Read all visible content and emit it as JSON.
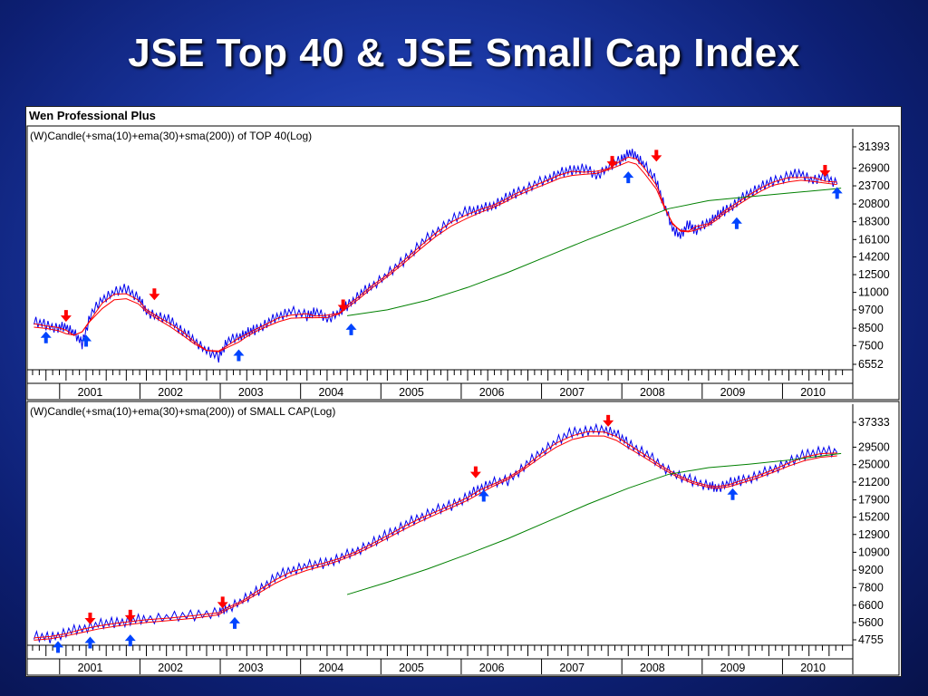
{
  "slide": {
    "title": "JSE Top 40 & JSE Small Cap Index"
  },
  "app": {
    "title": "Wen Professional Plus"
  },
  "colors": {
    "candle": "#0000ee",
    "sma10": "#ff0000",
    "ema30": "#ff0000",
    "sma200": "#008000",
    "buy_arrow": "#0044ff",
    "sell_arrow": "#ff0000"
  },
  "chart_data": [
    {
      "type": "line",
      "title": "(W)Candle(+sma(10)+ema(30)+sma(200)) of TOP 40(Log)",
      "y_scale": "log",
      "yticks": [
        31393,
        26900,
        23700,
        20800,
        18300,
        16100,
        14200,
        12500,
        11000,
        9700,
        8500,
        7500,
        6552
      ],
      "ylim": [
        6552,
        31393
      ],
      "x_labels": [
        "2001",
        "2002",
        "2003",
        "2004",
        "2005",
        "2006",
        "2007",
        "2008",
        "2009",
        "2010"
      ],
      "xlim": [
        2000.55,
        2010.75
      ],
      "series": [
        {
          "kind": "price",
          "x": [
            2000.6,
            2000.75,
            2000.9,
            2001.0,
            2001.1,
            2001.2,
            2001.3,
            2001.45,
            2001.6,
            2001.75,
            2001.9,
            2002.0,
            2002.15,
            2002.3,
            2002.45,
            2002.6,
            2002.75,
            2002.9,
            2003.0,
            2003.15,
            2003.25,
            2003.35,
            2003.5,
            2003.65,
            2003.8,
            2004.0,
            2004.1,
            2004.25,
            2004.4,
            2004.5,
            2004.65,
            2004.8,
            2005.0,
            2005.2,
            2005.4,
            2005.6,
            2005.8,
            2006.0,
            2006.15,
            2006.3,
            2006.45,
            2006.6,
            2006.8,
            2007.0,
            2007.15,
            2007.3,
            2007.45,
            2007.6,
            2007.75,
            2007.9,
            2008.0,
            2008.1,
            2008.2,
            2008.35,
            2008.45,
            2008.55,
            2008.65,
            2008.75,
            2008.85,
            2009.0,
            2009.1,
            2009.2,
            2009.35,
            2009.5,
            2009.65,
            2009.8,
            2010.0,
            2010.15,
            2010.3,
            2010.45,
            2010.6
          ],
          "values": [
            8900,
            8700,
            8500,
            8600,
            8200,
            7600,
            9300,
            10500,
            11000,
            11300,
            10600,
            9600,
            9200,
            9000,
            8300,
            7800,
            7200,
            6900,
            7700,
            8000,
            8200,
            8400,
            8800,
            9300,
            9600,
            9300,
            9600,
            9100,
            9500,
            10000,
            10800,
            11500,
            12500,
            13800,
            15500,
            17000,
            18500,
            19800,
            20000,
            20500,
            21500,
            22500,
            23700,
            25000,
            26000,
            26500,
            27000,
            25500,
            27000,
            28500,
            30000,
            29500,
            27500,
            24500,
            20500,
            17500,
            16500,
            18000,
            17200,
            18300,
            19000,
            19800,
            21000,
            22500,
            23500,
            24500,
            25500,
            26000,
            24500,
            25500,
            24000
          ]
        },
        {
          "kind": "sma200",
          "x": [
            2004.5,
            2005.0,
            2005.5,
            2006.0,
            2006.5,
            2007.0,
            2007.5,
            2008.0,
            2008.5,
            2009.0,
            2009.5,
            2010.0,
            2010.5,
            2010.65
          ],
          "values": [
            9300,
            9700,
            10400,
            11400,
            12700,
            14300,
            16100,
            18000,
            20100,
            21300,
            21900,
            22500,
            23100,
            23300
          ]
        }
      ],
      "signals": {
        "buy": [
          {
            "x": 2000.75,
            "y": 8300
          },
          {
            "x": 2001.25,
            "y": 8100
          },
          {
            "x": 2003.15,
            "y": 7300
          },
          {
            "x": 2004.55,
            "y": 8800
          },
          {
            "x": 2008.0,
            "y": 26300
          },
          {
            "x": 2009.35,
            "y": 18900
          },
          {
            "x": 2010.6,
            "y": 23500
          }
        ],
        "sell": [
          {
            "x": 2001.0,
            "y": 8900
          },
          {
            "x": 2002.1,
            "y": 10400
          },
          {
            "x": 2004.45,
            "y": 9600
          },
          {
            "x": 2007.8,
            "y": 27000
          },
          {
            "x": 2008.35,
            "y": 28200
          },
          {
            "x": 2010.45,
            "y": 25300
          }
        ]
      }
    },
    {
      "type": "line",
      "title": "(W)Candle(+sma(10)+ema(30)+sma(200)) of SMALL CAP(Log)",
      "y_scale": "log",
      "yticks": [
        37333,
        29500,
        25000,
        21200,
        17900,
        15200,
        12900,
        10900,
        9200,
        7800,
        6600,
        5600,
        4755
      ],
      "ylim": [
        4755,
        37333
      ],
      "x_labels": [
        "2001",
        "2002",
        "2003",
        "2004",
        "2005",
        "2006",
        "2007",
        "2008",
        "2009",
        "2010"
      ],
      "xlim": [
        2000.55,
        2010.75
      ],
      "series": [
        {
          "kind": "price",
          "x": [
            2000.6,
            2000.8,
            2001.0,
            2001.2,
            2001.4,
            2001.6,
            2001.8,
            2002.0,
            2002.3,
            2002.6,
            2002.9,
            2003.0,
            2003.2,
            2003.4,
            2003.6,
            2003.8,
            2004.0,
            2004.2,
            2004.4,
            2004.6,
            2004.8,
            2005.0,
            2005.2,
            2005.4,
            2005.6,
            2005.8,
            2006.0,
            2006.15,
            2006.3,
            2006.5,
            2006.7,
            2006.9,
            2007.1,
            2007.3,
            2007.5,
            2007.7,
            2007.85,
            2008.0,
            2008.2,
            2008.4,
            2008.6,
            2008.8,
            2009.0,
            2009.1,
            2009.25,
            2009.4,
            2009.6,
            2009.8,
            2010.0,
            2010.2,
            2010.4,
            2010.6
          ],
          "values": [
            4900,
            4850,
            5100,
            5300,
            5500,
            5600,
            5700,
            5800,
            5900,
            6000,
            6200,
            6400,
            6900,
            7600,
            8600,
            9200,
            9600,
            9800,
            10300,
            11000,
            11800,
            12900,
            14000,
            15200,
            16200,
            17000,
            18500,
            20000,
            21000,
            21500,
            24500,
            28000,
            31000,
            34000,
            34500,
            35000,
            33500,
            30500,
            28000,
            25000,
            22500,
            21500,
            20500,
            20000,
            21000,
            21500,
            22500,
            24000,
            25500,
            27500,
            28500,
            28000
          ]
        },
        {
          "kind": "sma200",
          "x": [
            2004.5,
            2005.0,
            2005.5,
            2006.0,
            2006.5,
            2007.0,
            2007.5,
            2008.0,
            2008.5,
            2009.0,
            2009.5,
            2010.0,
            2010.5,
            2010.65
          ],
          "values": [
            7300,
            8200,
            9300,
            10700,
            12400,
            14600,
            17200,
            20000,
            22800,
            24300,
            25100,
            26100,
            27400,
            27800
          ]
        }
      ],
      "signals": {
        "buy": [
          {
            "x": 2000.9,
            "y": 4700
          },
          {
            "x": 2001.3,
            "y": 4900
          },
          {
            "x": 2001.8,
            "y": 5000
          },
          {
            "x": 2003.1,
            "y": 5900
          },
          {
            "x": 2006.2,
            "y": 19700
          },
          {
            "x": 2009.3,
            "y": 20000
          }
        ],
        "sell": [
          {
            "x": 2001.3,
            "y": 5500
          },
          {
            "x": 2001.8,
            "y": 5650
          },
          {
            "x": 2002.95,
            "y": 6400
          },
          {
            "x": 2006.1,
            "y": 22000
          },
          {
            "x": 2007.75,
            "y": 35800
          }
        ]
      }
    }
  ]
}
